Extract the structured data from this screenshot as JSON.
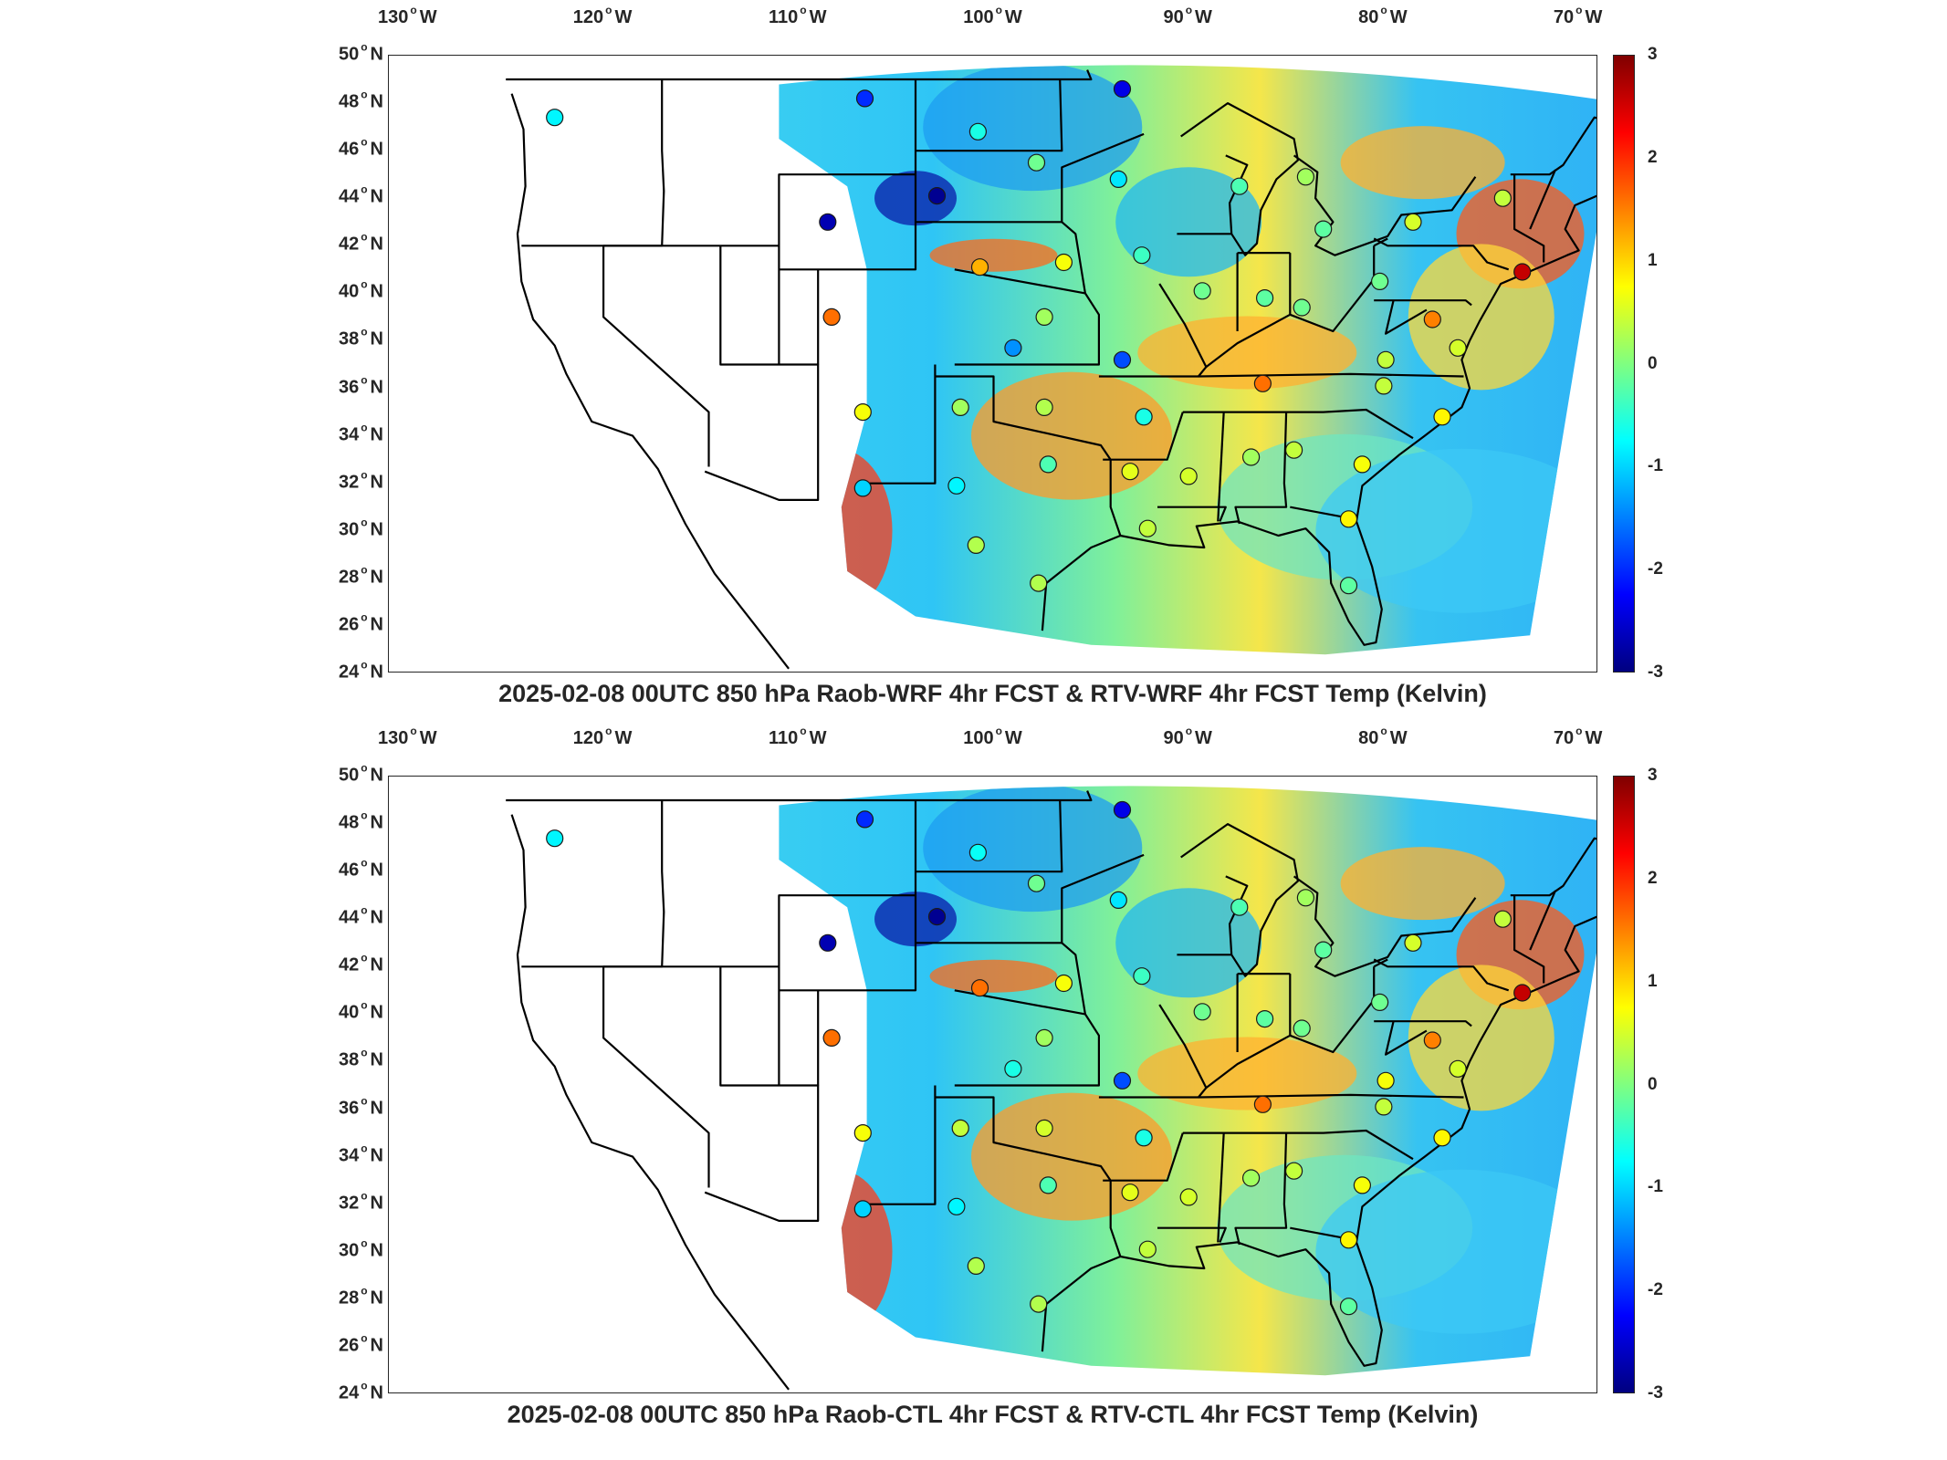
{
  "panels": [
    {
      "id": "raob-wrf",
      "title": "2025-02-08 00UTC 850 hPa Raob-WRF 4hr FCST & RTV-WRF 4hr FCST Temp (Kelvin)",
      "stations": [
        {
          "lon": -122.5,
          "lat": 47.4,
          "val": -0.8
        },
        {
          "lon": -106.6,
          "lat": 48.2,
          "val": -2.0
        },
        {
          "lon": -93.4,
          "lat": 48.6,
          "val": -2.4
        },
        {
          "lon": -100.8,
          "lat": 46.8,
          "val": -0.6
        },
        {
          "lon": -97.8,
          "lat": 45.5,
          "val": -0.1
        },
        {
          "lon": -93.6,
          "lat": 44.8,
          "val": -0.9
        },
        {
          "lon": -102.9,
          "lat": 44.1,
          "val": -2.9
        },
        {
          "lon": -108.5,
          "lat": 43.0,
          "val": -2.7
        },
        {
          "lon": -100.7,
          "lat": 41.1,
          "val": 1.2
        },
        {
          "lon": -96.4,
          "lat": 41.3,
          "val": 0.7
        },
        {
          "lon": -92.4,
          "lat": 41.6,
          "val": -0.4
        },
        {
          "lon": -89.3,
          "lat": 40.1,
          "val": -0.1
        },
        {
          "lon": -86.1,
          "lat": 39.8,
          "val": -0.2
        },
        {
          "lon": -84.2,
          "lat": 39.4,
          "val": -0.1
        },
        {
          "lon": -80.2,
          "lat": 40.5,
          "val": -0.1
        },
        {
          "lon": -83.1,
          "lat": 42.7,
          "val": -0.2
        },
        {
          "lon": -87.4,
          "lat": 44.5,
          "val": -0.3
        },
        {
          "lon": -84.0,
          "lat": 44.9,
          "val": 0.2
        },
        {
          "lon": -78.5,
          "lat": 43.0,
          "val": 0.5
        },
        {
          "lon": -73.9,
          "lat": 44.0,
          "val": 0.4
        },
        {
          "lon": -72.9,
          "lat": 40.9,
          "val": 2.6
        },
        {
          "lon": -77.5,
          "lat": 38.9,
          "val": 1.5
        },
        {
          "lon": -76.2,
          "lat": 37.7,
          "val": 0.5
        },
        {
          "lon": -79.9,
          "lat": 37.2,
          "val": 0.4
        },
        {
          "lon": -80.0,
          "lat": 36.1,
          "val": 0.4
        },
        {
          "lon": -86.2,
          "lat": 36.2,
          "val": 1.6
        },
        {
          "lon": -93.4,
          "lat": 37.2,
          "val": -1.8
        },
        {
          "lon": -97.4,
          "lat": 39.0,
          "val": 0.2
        },
        {
          "lon": -99.0,
          "lat": 37.7,
          "val": -1.4
        },
        {
          "lon": -108.3,
          "lat": 39.0,
          "val": 1.6
        },
        {
          "lon": -106.7,
          "lat": 35.0,
          "val": 0.7
        },
        {
          "lon": -101.7,
          "lat": 35.2,
          "val": 0.2
        },
        {
          "lon": -97.4,
          "lat": 35.2,
          "val": 0.3
        },
        {
          "lon": -92.3,
          "lat": 34.8,
          "val": -0.6
        },
        {
          "lon": -90.0,
          "lat": 32.3,
          "val": 0.5
        },
        {
          "lon": -86.8,
          "lat": 33.1,
          "val": 0.2
        },
        {
          "lon": -84.6,
          "lat": 33.4,
          "val": 0.4
        },
        {
          "lon": -81.1,
          "lat": 32.8,
          "val": 0.7
        },
        {
          "lon": -77.0,
          "lat": 34.8,
          "val": 0.8
        },
        {
          "lon": -93.0,
          "lat": 32.5,
          "val": 0.6
        },
        {
          "lon": -97.2,
          "lat": 32.8,
          "val": -0.3
        },
        {
          "lon": -101.9,
          "lat": 31.9,
          "val": -0.8
        },
        {
          "lon": -106.7,
          "lat": 31.8,
          "val": -1.0
        },
        {
          "lon": -100.9,
          "lat": 29.4,
          "val": 0.3
        },
        {
          "lon": -92.1,
          "lat": 30.1,
          "val": 0.4
        },
        {
          "lon": -97.7,
          "lat": 27.8,
          "val": 0.3
        },
        {
          "lon": -81.8,
          "lat": 30.5,
          "val": 0.8
        },
        {
          "lon": -81.8,
          "lat": 27.7,
          "val": -0.2
        }
      ]
    },
    {
      "id": "raob-ctl",
      "title": "2025-02-08 00UTC 850 hPa Raob-CTL 4hr FCST & RTV-CTL 4hr FCST Temp (Kelvin)",
      "stations": [
        {
          "lon": -122.5,
          "lat": 47.4,
          "val": -0.8
        },
        {
          "lon": -106.6,
          "lat": 48.2,
          "val": -2.0
        },
        {
          "lon": -93.4,
          "lat": 48.6,
          "val": -2.4
        },
        {
          "lon": -100.8,
          "lat": 46.8,
          "val": -0.7
        },
        {
          "lon": -97.8,
          "lat": 45.5,
          "val": -0.1
        },
        {
          "lon": -93.6,
          "lat": 44.8,
          "val": -0.9
        },
        {
          "lon": -102.9,
          "lat": 44.1,
          "val": -2.9
        },
        {
          "lon": -108.5,
          "lat": 43.0,
          "val": -2.7
        },
        {
          "lon": -100.7,
          "lat": 41.1,
          "val": 1.6
        },
        {
          "lon": -96.4,
          "lat": 41.3,
          "val": 0.7
        },
        {
          "lon": -92.4,
          "lat": 41.6,
          "val": -0.4
        },
        {
          "lon": -89.3,
          "lat": 40.1,
          "val": -0.1
        },
        {
          "lon": -86.1,
          "lat": 39.8,
          "val": -0.2
        },
        {
          "lon": -84.2,
          "lat": 39.4,
          "val": -0.1
        },
        {
          "lon": -80.2,
          "lat": 40.5,
          "val": -0.1
        },
        {
          "lon": -83.1,
          "lat": 42.7,
          "val": -0.2
        },
        {
          "lon": -87.4,
          "lat": 44.5,
          "val": -0.3
        },
        {
          "lon": -84.0,
          "lat": 44.9,
          "val": 0.2
        },
        {
          "lon": -78.5,
          "lat": 43.0,
          "val": 0.5
        },
        {
          "lon": -73.9,
          "lat": 44.0,
          "val": 0.4
        },
        {
          "lon": -72.9,
          "lat": 40.9,
          "val": 2.6
        },
        {
          "lon": -77.5,
          "lat": 38.9,
          "val": 1.5
        },
        {
          "lon": -76.2,
          "lat": 37.7,
          "val": 0.5
        },
        {
          "lon": -79.9,
          "lat": 37.2,
          "val": 0.7
        },
        {
          "lon": -80.0,
          "lat": 36.1,
          "val": 0.4
        },
        {
          "lon": -86.2,
          "lat": 36.2,
          "val": 1.6
        },
        {
          "lon": -93.4,
          "lat": 37.2,
          "val": -1.8
        },
        {
          "lon": -97.4,
          "lat": 39.0,
          "val": 0.2
        },
        {
          "lon": -99.0,
          "lat": 37.7,
          "val": -0.6
        },
        {
          "lon": -108.3,
          "lat": 39.0,
          "val": 1.6
        },
        {
          "lon": -106.7,
          "lat": 35.0,
          "val": 0.7
        },
        {
          "lon": -101.7,
          "lat": 35.2,
          "val": 0.4
        },
        {
          "lon": -97.4,
          "lat": 35.2,
          "val": 0.5
        },
        {
          "lon": -92.3,
          "lat": 34.8,
          "val": -0.6
        },
        {
          "lon": -90.0,
          "lat": 32.3,
          "val": 0.5
        },
        {
          "lon": -86.8,
          "lat": 33.1,
          "val": 0.2
        },
        {
          "lon": -84.6,
          "lat": 33.4,
          "val": 0.4
        },
        {
          "lon": -81.1,
          "lat": 32.8,
          "val": 0.7
        },
        {
          "lon": -77.0,
          "lat": 34.8,
          "val": 0.8
        },
        {
          "lon": -93.0,
          "lat": 32.5,
          "val": 0.6
        },
        {
          "lon": -97.2,
          "lat": 32.8,
          "val": -0.3
        },
        {
          "lon": -101.9,
          "lat": 31.9,
          "val": -0.8
        },
        {
          "lon": -106.7,
          "lat": 31.8,
          "val": -1.0
        },
        {
          "lon": -100.9,
          "lat": 29.4,
          "val": 0.3
        },
        {
          "lon": -92.1,
          "lat": 30.1,
          "val": 0.4
        },
        {
          "lon": -97.7,
          "lat": 27.8,
          "val": 0.3
        },
        {
          "lon": -81.8,
          "lat": 30.5,
          "val": 0.8
        },
        {
          "lon": -81.8,
          "lat": 27.7,
          "val": -0.2
        }
      ]
    }
  ],
  "axes": {
    "lon_ticks": [
      "130",
      "120",
      "110",
      "100",
      "90",
      "80",
      "70"
    ],
    "lon_values": [
      -130,
      -120,
      -110,
      -100,
      -90,
      -80,
      -70
    ],
    "lon_hemisphere": "W",
    "lat_ticks": [
      "50",
      "48",
      "46",
      "44",
      "42",
      "40",
      "38",
      "36",
      "34",
      "32",
      "30",
      "28",
      "26",
      "24"
    ],
    "lat_values": [
      50,
      48,
      46,
      44,
      42,
      40,
      38,
      36,
      34,
      32,
      30,
      28,
      26,
      24
    ],
    "lat_hemisphere": "N",
    "lon_range": [
      -131,
      -69
    ],
    "lat_range": [
      24,
      50
    ]
  },
  "colorbar": {
    "ticks": [
      "3",
      "2",
      "1",
      "0",
      "-1",
      "-2",
      "-3"
    ],
    "tick_values": [
      3,
      2,
      1,
      0,
      -1,
      -2,
      -3
    ],
    "range": [
      -3,
      3
    ],
    "colormap": "jet"
  },
  "colors": {
    "border": "#262626",
    "ocean": "#ffffff"
  }
}
